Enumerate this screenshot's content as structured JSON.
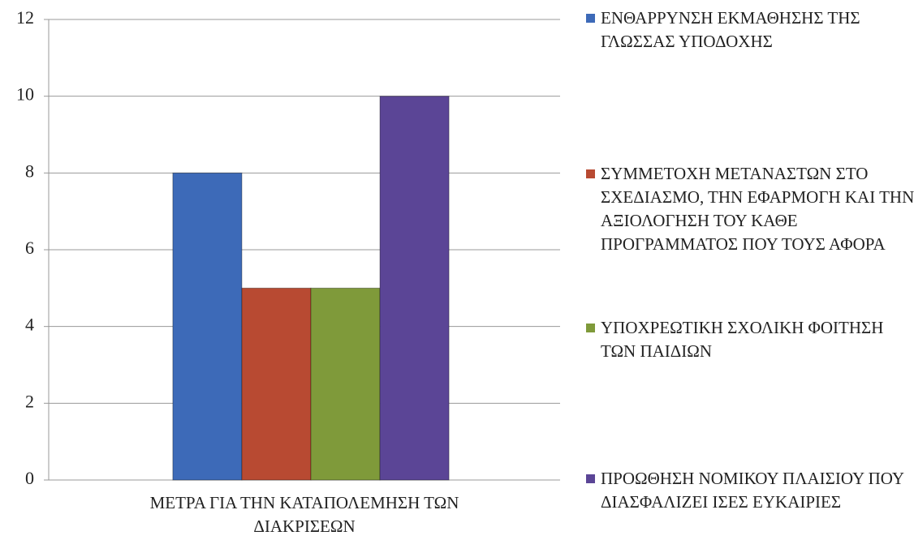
{
  "chart_data": {
    "type": "bar",
    "categories": [
      "ΜΕΤΡΑ ΓΙΑ ΤΗΝ ΚΑΤΑΠΟΛΕΜΗΣΗ ΤΩΝ ΔΙΑΚΡΙΣΕΩΝ"
    ],
    "series": [
      {
        "name": "ΕΝΘΑΡΡΥΝΣΗ ΕΚΜΑΘΗΣΗΣ ΤΗΣ ΓΛΩΣΣΑΣ ΥΠΟΔΟΧΗΣ",
        "color": "#3d6ab8",
        "values": [
          8
        ]
      },
      {
        "name": "ΣΥΜΜΕΤΟΧΗ ΜΕΤΑΝΑΣΤΩΝ ΣΤΟ ΣΧΕΔΙΑΣΜΟ, ΤΗΝ ΕΦΑΡΜΟΓΗ ΚΑΙ ΤΗΝ ΑΞΙΟΛΟΓΗΣΗ ΤΟΥ ΚΑΘΕ ΠΡΟΓΡΑΜΜΑΤΟΣ ΠΟΥ ΤΟΥΣ ΑΦΟΡΑ",
        "color": "#b84a32",
        "values": [
          5
        ]
      },
      {
        "name": "ΥΠΟΧΡΕΩΤΙΚΗ ΣΧΟΛΙΚΗ ΦΟΙΤΗΣΗ ΤΩΝ ΠΑΙΔΙΩΝ",
        "color": "#7f9a3a",
        "values": [
          5
        ]
      },
      {
        "name": "ΠΡΟΩΘΗΣΗ ΝΟΜΙΚΟΥ ΠΛΑΙΣΙΟΥ ΠΟΥ ΔΙΑΣΦΑΛΙΖΕΙ ΙΣΕΣ ΕΥΚΑΙΡΙΕΣ",
        "color": "#5b4596",
        "values": [
          10
        ]
      }
    ],
    "ylim": [
      0,
      12
    ],
    "yticks": [
      0,
      2,
      4,
      6,
      8,
      10,
      12
    ],
    "grid": true,
    "legend": "right"
  }
}
